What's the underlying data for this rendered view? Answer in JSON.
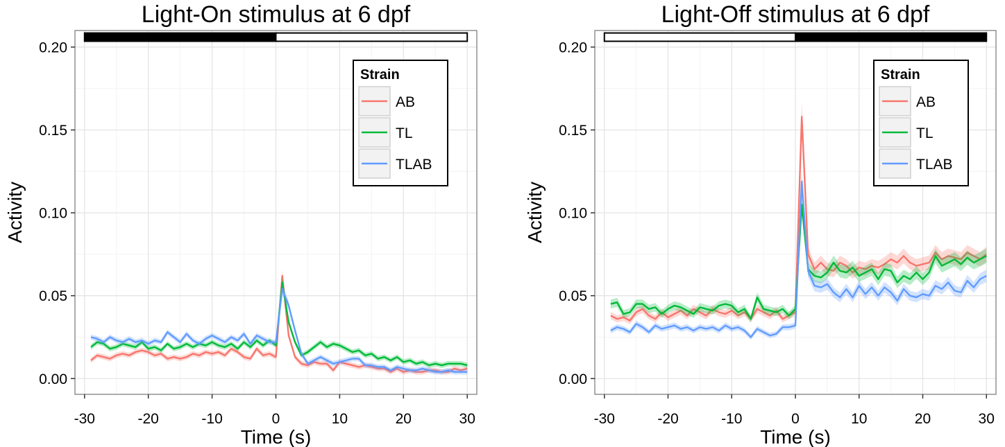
{
  "colors": {
    "AB": "#F8766D",
    "TL": "#00BA38",
    "TLAB": "#619CFF"
  },
  "chart_data": [
    {
      "type": "line",
      "title": "Light-On stimulus at 6 dpf",
      "xlabel": "Time (s)",
      "ylabel": "Activity",
      "xlim": [
        -31.5,
        31.5
      ],
      "ylim": [
        -0.0095,
        0.21
      ],
      "x_ticks": [
        -30,
        -20,
        -10,
        0,
        10,
        20,
        30
      ],
      "x_tick_labels": [
        "-30",
        "-20",
        "-10",
        "0",
        "10",
        "20",
        "30"
      ],
      "y_ticks": [
        0.0,
        0.05,
        0.1,
        0.15,
        0.2
      ],
      "y_tick_labels": [
        "0.00",
        "0.05",
        "0.10",
        "0.15",
        "0.20"
      ],
      "grid": true,
      "legend": {
        "title": "Strain",
        "position": "top-right",
        "entries": [
          "AB",
          "TL",
          "TLAB"
        ]
      },
      "stimulus_bar": [
        {
          "from": -30,
          "to": 0,
          "state": "dark"
        },
        {
          "from": 0,
          "to": 30,
          "state": "light"
        }
      ],
      "x": [
        -29,
        -28,
        -27,
        -26,
        -25,
        -24,
        -23,
        -22,
        -21,
        -20,
        -19,
        -18,
        -17,
        -16,
        -15,
        -14,
        -13,
        -12,
        -11,
        -10,
        -9,
        -8,
        -7,
        -6,
        -5,
        -4,
        -3,
        -2,
        -1,
        0,
        1,
        2,
        3,
        4,
        5,
        6,
        7,
        8,
        9,
        10,
        11,
        12,
        13,
        14,
        15,
        16,
        17,
        18,
        19,
        20,
        21,
        22,
        23,
        24,
        25,
        26,
        27,
        28,
        29,
        30
      ],
      "series": [
        {
          "name": "AB",
          "values": [
            0.011,
            0.014,
            0.013,
            0.012,
            0.014,
            0.015,
            0.014,
            0.016,
            0.017,
            0.016,
            0.014,
            0.015,
            0.012,
            0.013,
            0.012,
            0.013,
            0.015,
            0.014,
            0.016,
            0.015,
            0.016,
            0.014,
            0.018,
            0.016,
            0.013,
            0.012,
            0.018,
            0.014,
            0.015,
            0.013,
            0.062,
            0.026,
            0.013,
            0.009,
            0.008,
            0.01,
            0.009,
            0.009,
            0.005,
            0.01,
            0.009,
            0.008,
            0.007,
            0.008,
            0.007,
            0.006,
            0.006,
            0.004,
            0.006,
            0.004,
            0.005,
            0.004,
            0.004,
            0.005,
            0.005,
            0.004,
            0.004,
            0.006,
            0.005,
            0.006
          ]
        },
        {
          "name": "TL",
          "values": [
            0.019,
            0.022,
            0.021,
            0.018,
            0.019,
            0.021,
            0.02,
            0.019,
            0.022,
            0.018,
            0.019,
            0.017,
            0.021,
            0.018,
            0.019,
            0.021,
            0.019,
            0.021,
            0.02,
            0.022,
            0.02,
            0.019,
            0.021,
            0.018,
            0.022,
            0.019,
            0.023,
            0.02,
            0.023,
            0.02,
            0.058,
            0.034,
            0.022,
            0.014,
            0.016,
            0.019,
            0.022,
            0.019,
            0.021,
            0.02,
            0.018,
            0.016,
            0.017,
            0.014,
            0.015,
            0.012,
            0.013,
            0.011,
            0.013,
            0.01,
            0.011,
            0.009,
            0.01,
            0.008,
            0.009,
            0.008,
            0.009,
            0.009,
            0.009,
            0.008
          ]
        },
        {
          "name": "TLAB",
          "values": [
            0.025,
            0.024,
            0.022,
            0.025,
            0.023,
            0.022,
            0.024,
            0.022,
            0.023,
            0.021,
            0.023,
            0.022,
            0.028,
            0.025,
            0.022,
            0.027,
            0.023,
            0.021,
            0.024,
            0.026,
            0.024,
            0.022,
            0.025,
            0.023,
            0.027,
            0.021,
            0.026,
            0.024,
            0.022,
            0.022,
            0.054,
            0.044,
            0.029,
            0.015,
            0.009,
            0.011,
            0.013,
            0.011,
            0.009,
            0.01,
            0.011,
            0.012,
            0.012,
            0.008,
            0.008,
            0.007,
            0.007,
            0.005,
            0.007,
            0.006,
            0.005,
            0.005,
            0.006,
            0.005,
            0.004,
            0.004,
            0.005,
            0.004,
            0.004,
            0.004
          ]
        }
      ]
    },
    {
      "type": "line",
      "title": "Light-Off stimulus at 6 dpf",
      "xlabel": "Time (s)",
      "ylabel": "Activity",
      "xlim": [
        -31.5,
        31.5
      ],
      "ylim": [
        -0.0095,
        0.21
      ],
      "x_ticks": [
        -30,
        -20,
        -10,
        0,
        10,
        20,
        30
      ],
      "x_tick_labels": [
        "-30",
        "-20",
        "-10",
        "0",
        "10",
        "20",
        "30"
      ],
      "y_ticks": [
        0.0,
        0.05,
        0.1,
        0.15,
        0.2
      ],
      "y_tick_labels": [
        "0.00",
        "0.05",
        "0.10",
        "0.15",
        "0.20"
      ],
      "grid": true,
      "legend": {
        "title": "Strain",
        "position": "top-right",
        "entries": [
          "AB",
          "TL",
          "TLAB"
        ]
      },
      "stimulus_bar": [
        {
          "from": -30,
          "to": 0,
          "state": "light"
        },
        {
          "from": 0,
          "to": 30,
          "state": "dark"
        }
      ],
      "x": [
        -29,
        -28,
        -27,
        -26,
        -25,
        -24,
        -23,
        -22,
        -21,
        -20,
        -19,
        -18,
        -17,
        -16,
        -15,
        -14,
        -13,
        -12,
        -11,
        -10,
        -9,
        -8,
        -7,
        -6,
        -5,
        -4,
        -3,
        -2,
        -1,
        0,
        1,
        2,
        3,
        4,
        5,
        6,
        7,
        8,
        9,
        10,
        11,
        12,
        13,
        14,
        15,
        16,
        17,
        18,
        19,
        20,
        21,
        22,
        23,
        24,
        25,
        26,
        27,
        28,
        29,
        30
      ],
      "series": [
        {
          "name": "AB",
          "values": [
            0.038,
            0.036,
            0.037,
            0.035,
            0.04,
            0.042,
            0.038,
            0.036,
            0.04,
            0.037,
            0.039,
            0.041,
            0.038,
            0.042,
            0.04,
            0.038,
            0.042,
            0.04,
            0.039,
            0.041,
            0.038,
            0.04,
            0.036,
            0.042,
            0.04,
            0.038,
            0.041,
            0.036,
            0.038,
            0.04,
            0.158,
            0.075,
            0.066,
            0.07,
            0.066,
            0.065,
            0.07,
            0.068,
            0.064,
            0.067,
            0.066,
            0.068,
            0.067,
            0.069,
            0.072,
            0.07,
            0.074,
            0.07,
            0.068,
            0.069,
            0.07,
            0.076,
            0.072,
            0.074,
            0.073,
            0.072,
            0.076,
            0.074,
            0.072,
            0.075
          ]
        },
        {
          "name": "TL",
          "values": [
            0.045,
            0.046,
            0.039,
            0.04,
            0.045,
            0.045,
            0.042,
            0.043,
            0.039,
            0.042,
            0.044,
            0.043,
            0.041,
            0.039,
            0.043,
            0.042,
            0.041,
            0.044,
            0.045,
            0.044,
            0.04,
            0.042,
            0.036,
            0.049,
            0.042,
            0.041,
            0.04,
            0.042,
            0.038,
            0.042,
            0.105,
            0.066,
            0.062,
            0.061,
            0.064,
            0.07,
            0.065,
            0.064,
            0.067,
            0.062,
            0.064,
            0.066,
            0.06,
            0.066,
            0.065,
            0.058,
            0.062,
            0.06,
            0.064,
            0.06,
            0.064,
            0.074,
            0.068,
            0.07,
            0.072,
            0.069,
            0.073,
            0.07,
            0.072,
            0.074
          ]
        },
        {
          "name": "TLAB",
          "values": [
            0.029,
            0.031,
            0.03,
            0.028,
            0.033,
            0.031,
            0.028,
            0.032,
            0.03,
            0.031,
            0.032,
            0.03,
            0.031,
            0.029,
            0.031,
            0.03,
            0.031,
            0.029,
            0.032,
            0.03,
            0.031,
            0.029,
            0.025,
            0.03,
            0.028,
            0.026,
            0.027,
            0.031,
            0.031,
            0.032,
            0.119,
            0.065,
            0.056,
            0.055,
            0.057,
            0.052,
            0.049,
            0.054,
            0.049,
            0.056,
            0.051,
            0.055,
            0.05,
            0.055,
            0.052,
            0.047,
            0.054,
            0.05,
            0.049,
            0.051,
            0.05,
            0.056,
            0.054,
            0.058,
            0.053,
            0.052,
            0.059,
            0.055,
            0.06,
            0.062
          ]
        }
      ]
    }
  ]
}
